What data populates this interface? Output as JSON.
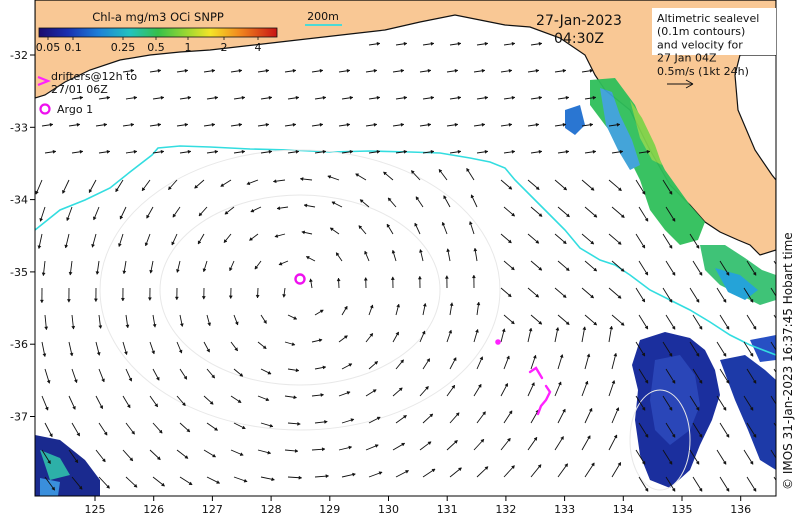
{
  "colorbar": {
    "title": "Chl-a mg/m3 OCi SNPP",
    "ticks": [
      "0.05",
      "0.1",
      "0.25",
      "0.5",
      "1",
      "2",
      "4"
    ]
  },
  "isobath_label": "200m",
  "date": "27-Jan-2023",
  "time": "04:30Z",
  "legend_box": {
    "lines": [
      "Altimetric sealevel",
      "(0.1m contours)",
      "and velocity for",
      "27 Jan 04Z",
      "0.5m/s (1kt 24h)"
    ]
  },
  "drifters_legend": [
    "drifters@12h to",
    "27/01 06Z"
  ],
  "argo_legend": "Argo 1",
  "side_credit": "© IMOS 31-Jan-2023 16:37:45 Hobart time",
  "axes": {
    "lon_ticks": [
      "125",
      "126",
      "127",
      "128",
      "129",
      "130",
      "131",
      "132",
      "133",
      "134",
      "135",
      "136"
    ],
    "lat_ticks": [
      "-32",
      "-33",
      "-34",
      "-35",
      "-36",
      "-37"
    ]
  },
  "colors": {
    "land": "#f9c895",
    "isobath": "#33dde0",
    "drifter": "#ff22ff",
    "argo": "#ee11ee",
    "arrow": "#111111"
  }
}
